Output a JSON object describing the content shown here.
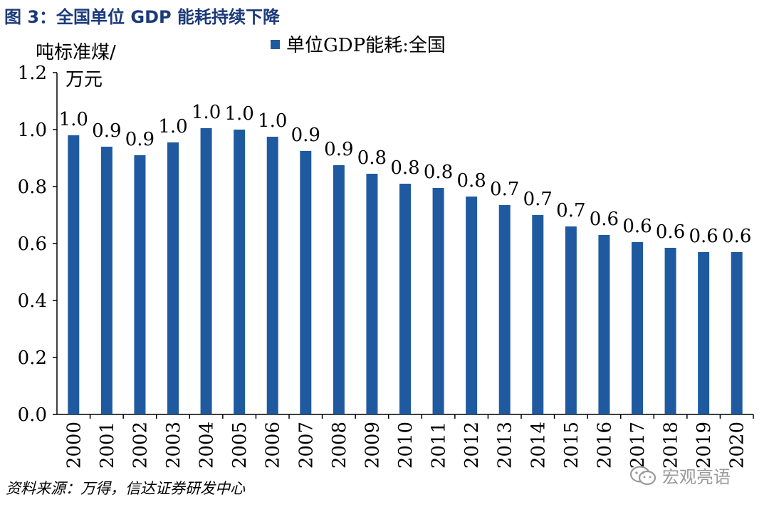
{
  "figure": {
    "title": "图 3：全国单位 GDP 能耗持续下降",
    "source": "资料来源：万得，信达证券研发中心",
    "watermark": "宏观亮语",
    "watermark_icon": "wechat-icon"
  },
  "chart_data": {
    "type": "bar",
    "ylabel_line1": "吨标准煤/",
    "ylabel_line2": "万元",
    "ylim": [
      0,
      1.2
    ],
    "yticks": [
      "0.0",
      "0.2",
      "0.4",
      "0.6",
      "0.8",
      "1.0",
      "1.2"
    ],
    "grid": false,
    "legend_position": "top",
    "bar_color": "#1f5aa0",
    "categories": [
      "2000",
      "2001",
      "2002",
      "2003",
      "2004",
      "2005",
      "2006",
      "2007",
      "2008",
      "2009",
      "2010",
      "2011",
      "2012",
      "2013",
      "2014",
      "2015",
      "2016",
      "2017",
      "2018",
      "2019",
      "2020"
    ],
    "series": [
      {
        "name": "单位GDP能耗:全国",
        "values": [
          0.98,
          0.94,
          0.91,
          0.955,
          1.005,
          1.0,
          0.975,
          0.925,
          0.875,
          0.845,
          0.81,
          0.795,
          0.765,
          0.735,
          0.7,
          0.66,
          0.63,
          0.605,
          0.585,
          0.57,
          0.57
        ],
        "labels": [
          "1.0",
          "0.9",
          "0.9",
          "1.0",
          "1.0",
          "1.0",
          "1.0",
          "0.9",
          "0.9",
          "0.8",
          "0.8",
          "0.8",
          "0.8",
          "0.7",
          "0.7",
          "0.7",
          "0.6",
          "0.6",
          "0.6",
          "0.6",
          "0.6"
        ]
      }
    ]
  }
}
